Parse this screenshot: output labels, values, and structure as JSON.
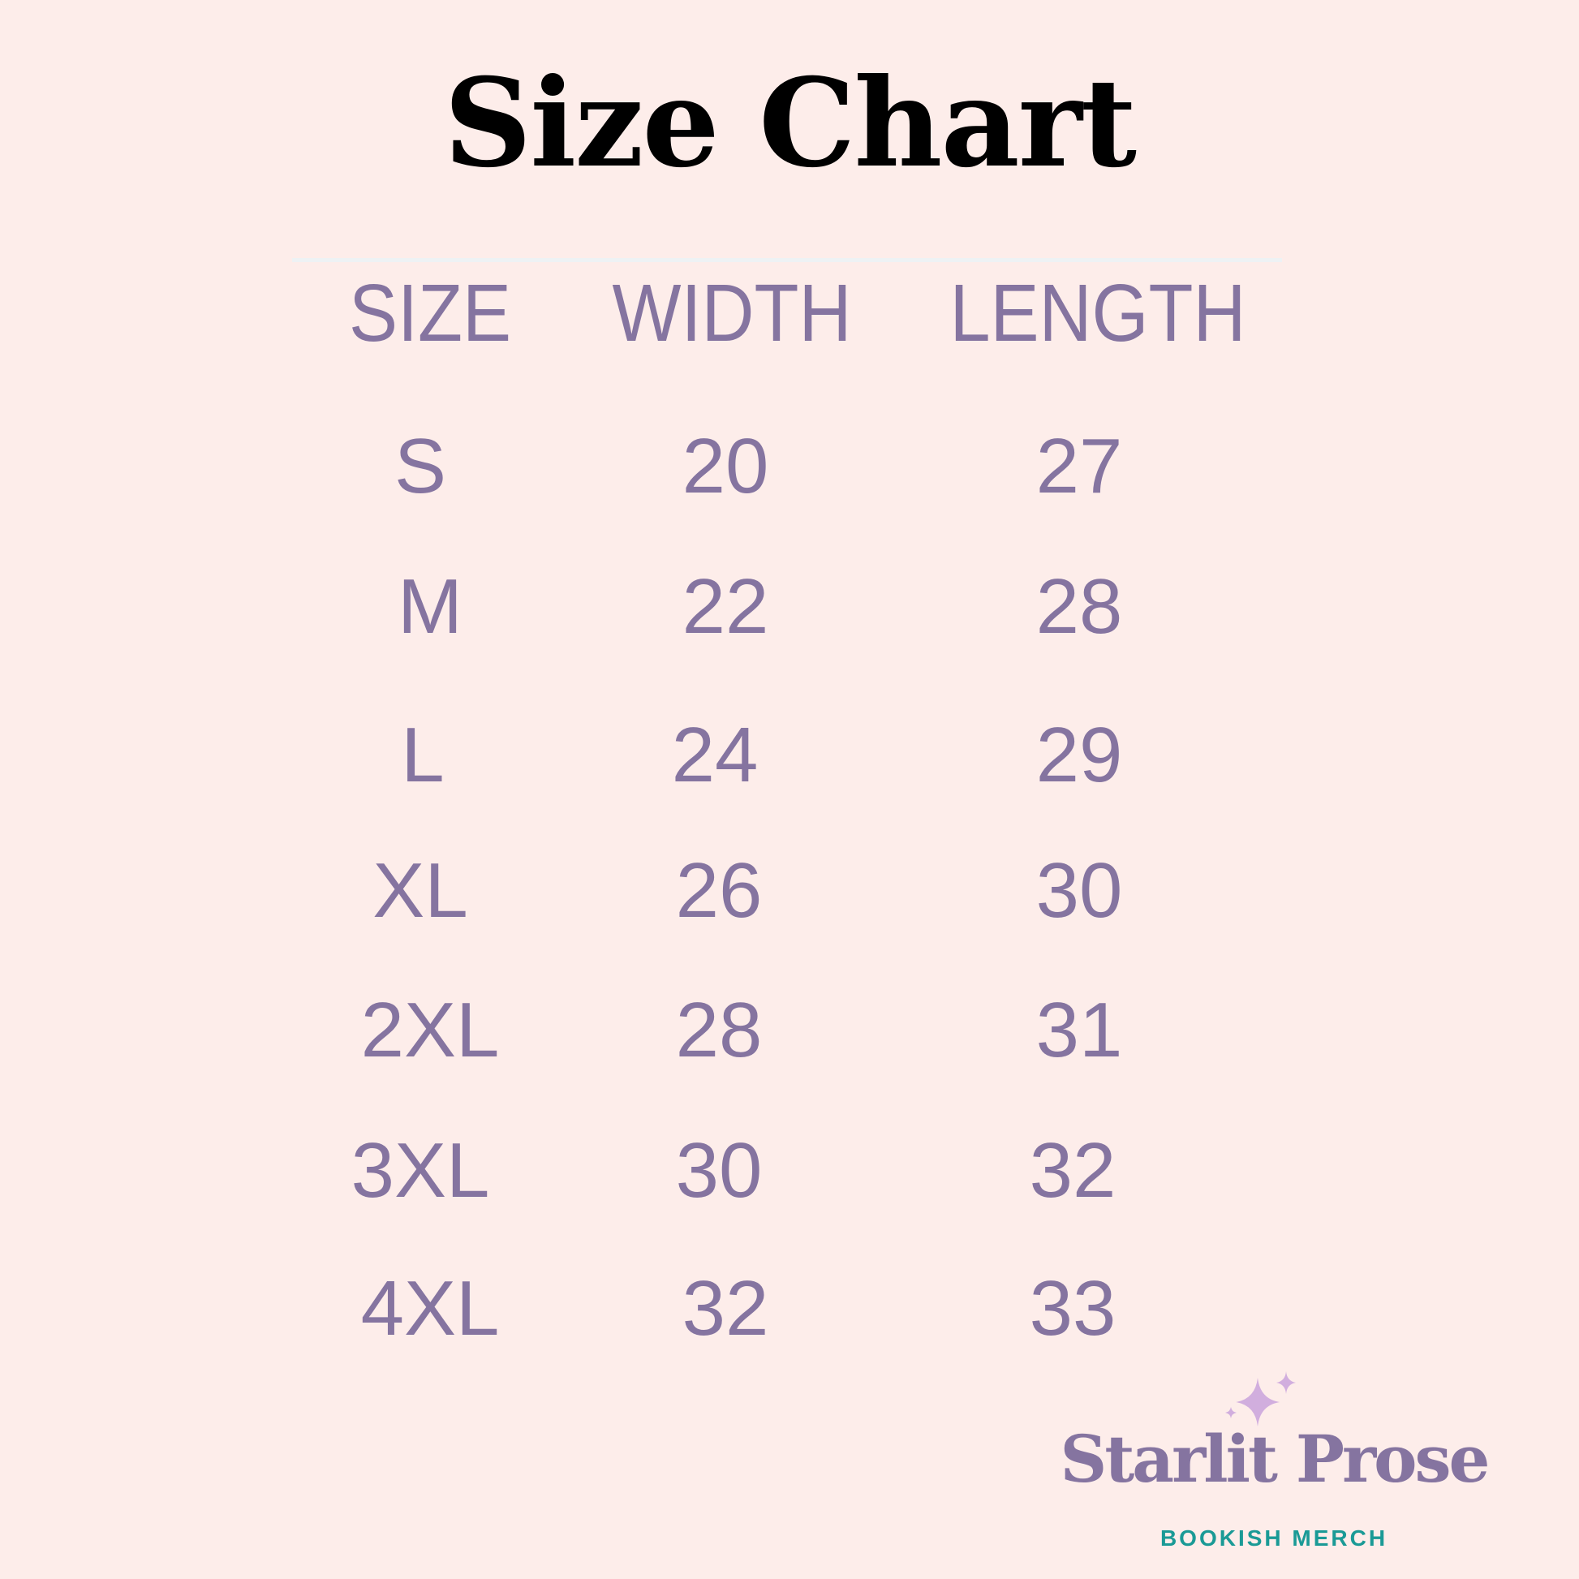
{
  "title": "Size Chart",
  "table": {
    "headers": [
      "SIZE",
      "WIDTH",
      "LENGTH"
    ],
    "rows": [
      {
        "size": "S",
        "width": "20",
        "length": "27"
      },
      {
        "size": "M",
        "width": "22",
        "length": "28"
      },
      {
        "size": "L",
        "width": "24",
        "length": "29"
      },
      {
        "size": "XL",
        "width": "26",
        "length": "30"
      },
      {
        "size": "2XL",
        "width": "28",
        "length": "31"
      },
      {
        "size": "3XL",
        "width": "30",
        "length": "32"
      },
      {
        "size": "4XL",
        "width": "32",
        "length": "33"
      }
    ]
  },
  "brand": {
    "name": "Starlit Prose",
    "tagline": "BOOKISH MERCH",
    "icon": "sparkle-stars-icon"
  },
  "colors": {
    "background": "#fdedea",
    "text": "#8574a0",
    "title": "#000000",
    "accent": "#1a9a96",
    "sparkle": "#d1aede"
  }
}
